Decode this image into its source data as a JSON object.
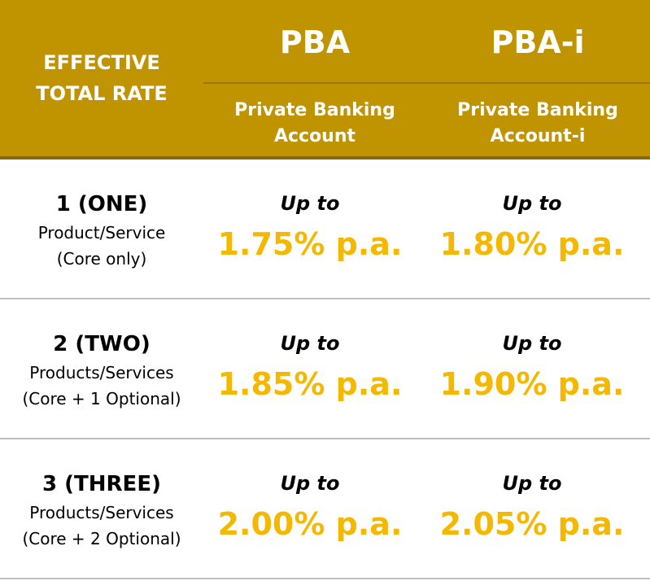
{
  "header": {
    "left_line1": "EFFECTIVE",
    "left_line2": "TOTAL RATE",
    "col1_title": "PBA",
    "col1_sub_line1": "Private Banking",
    "col1_sub_line2": "Account",
    "col2_title": "PBA-i",
    "col2_sub_line1": "Private Banking",
    "col2_sub_line2": "Account-i"
  },
  "rows": [
    {
      "tier": "1 (ONE)",
      "products": "Product/Service",
      "note": "(Core only)",
      "pba_prefix": "Up to",
      "pba_rate": "1.75% p.a.",
      "pbai_prefix": "Up to",
      "pbai_rate": "1.80% p.a."
    },
    {
      "tier": "2 (TWO)",
      "products": "Products/Services",
      "note": "(Core + 1 Optional)",
      "pba_prefix": "Up to",
      "pba_rate": "1.85% p.a.",
      "pbai_prefix": "Up to",
      "pbai_rate": "1.90% p.a."
    },
    {
      "tier": "3 (THREE)",
      "products": "Products/Services",
      "note": "(Core + 2 Optional)",
      "pba_prefix": "Up to",
      "pba_rate": "2.00% p.a.",
      "pbai_prefix": "Up to",
      "pbai_rate": "2.05% p.a."
    }
  ],
  "colors": {
    "header_bg": "#c09300",
    "rate_text": "#f5b800"
  }
}
